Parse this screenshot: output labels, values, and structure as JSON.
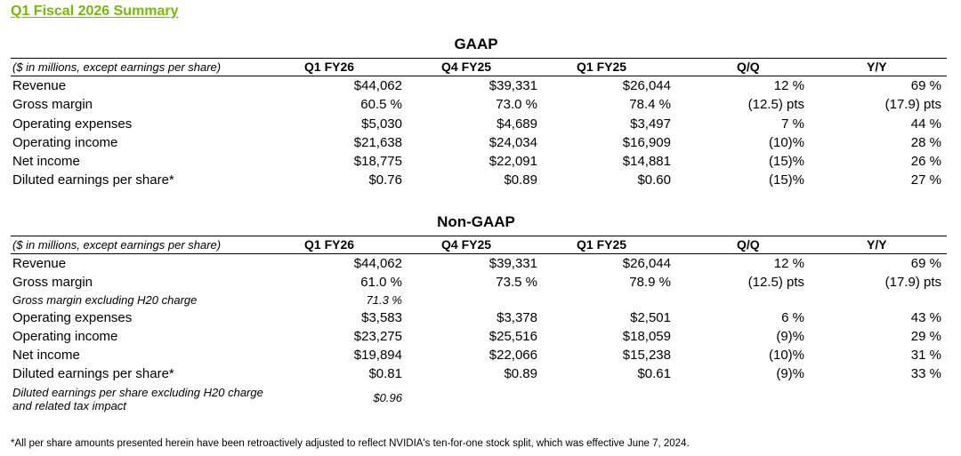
{
  "title": "Q1 Fiscal 2026 Summary",
  "colors": {
    "title": "#76b900"
  },
  "gaap": {
    "section_title": "GAAP",
    "header": {
      "label": "($ in millions, except earnings per share)",
      "cols": [
        "Q1 FY26",
        "Q4 FY25",
        "Q1 FY25",
        "Q/Q",
        "Y/Y"
      ]
    },
    "rows": [
      {
        "label": "Revenue",
        "values": [
          "$44,062",
          "$39,331",
          "$26,044",
          "12 %",
          "69 %"
        ]
      },
      {
        "label": "Gross margin",
        "values": [
          "60.5 %",
          "73.0 %",
          "78.4 %",
          "(12.5) pts",
          "(17.9) pts"
        ]
      },
      {
        "label": "Operating expenses",
        "values": [
          "$5,030",
          "$4,689",
          "$3,497",
          "7 %",
          "44 %"
        ]
      },
      {
        "label": "Operating income",
        "values": [
          "$21,638",
          "$24,034",
          "$16,909",
          "(10)%",
          "28 %"
        ]
      },
      {
        "label": "Net income",
        "values": [
          "$18,775",
          "$22,091",
          "$14,881",
          "(15)%",
          "26 %"
        ]
      },
      {
        "label": "Diluted earnings per share*",
        "values": [
          "$0.76",
          "$0.89",
          "$0.60",
          "(15)%",
          "27 %"
        ]
      }
    ]
  },
  "nongaap": {
    "section_title": "Non-GAAP",
    "header": {
      "label": "($ in millions, except earnings per share)",
      "cols": [
        "Q1 FY26",
        "Q4 FY25",
        "Q1 FY25",
        "Q/Q",
        "Y/Y"
      ]
    },
    "rows": [
      {
        "label": "Revenue",
        "values": [
          "$44,062",
          "$39,331",
          "$26,044",
          "12 %",
          "69 %"
        ]
      },
      {
        "label": "Gross margin",
        "values": [
          "61.0 %",
          "73.5 %",
          "78.9 %",
          "(12.5) pts",
          "(17.9) pts"
        ]
      },
      {
        "label": "Gross margin excluding H20 charge",
        "values": [
          "71.3 %"
        ]
      },
      {
        "label": "Operating expenses",
        "values": [
          "$3,583",
          "$3,378",
          "$2,501",
          "6 %",
          "43 %"
        ]
      },
      {
        "label": "Operating income",
        "values": [
          "$23,275",
          "$25,516",
          "$18,059",
          "(9)%",
          "29 %"
        ]
      },
      {
        "label": "Net income",
        "values": [
          "$19,894",
          "$22,066",
          "$15,238",
          "(10)%",
          "31 %"
        ]
      },
      {
        "label": "Diluted earnings per share*",
        "values": [
          "$0.81",
          "$0.89",
          "$0.61",
          "(9)%",
          "33 %"
        ]
      },
      {
        "label": "Diluted earnings per share excluding H20 charge and related tax impact",
        "values": [
          "$0.96"
        ]
      }
    ]
  },
  "footnote": "*All per share amounts presented herein have been retroactively adjusted to reflect NVIDIA's ten-for-one stock split, which was effective June 7, 2024."
}
